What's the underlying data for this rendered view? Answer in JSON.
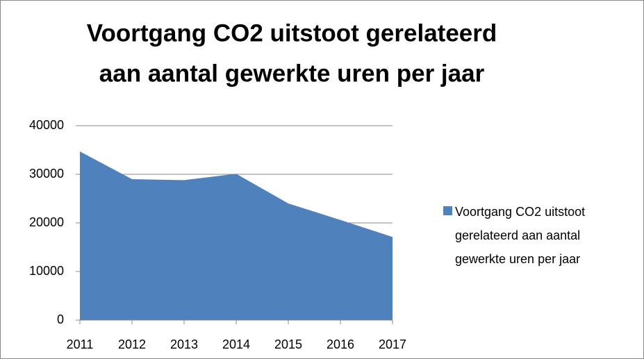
{
  "chart_data": {
    "type": "area",
    "title": [
      "Voortgang CO2 uitstoot gerelateerd",
      "aan aantal gewerkte uren per jaar"
    ],
    "x": [
      2011,
      2012,
      2013,
      2014,
      2015,
      2016,
      2017
    ],
    "xlim": [
      2011,
      2017
    ],
    "xticks": [
      2011,
      2012,
      2013,
      2014,
      2015,
      2016,
      2017
    ],
    "series": [
      {
        "name": "Voortgang CO2 uitstoot gerelateerd aan aantal gewerkte uren per jaar",
        "color": "#4f81bd",
        "values": [
          34700,
          29000,
          28800,
          30100,
          24000,
          20600,
          17100
        ]
      }
    ],
    "ylim": [
      0,
      40000
    ],
    "yticks": [
      0,
      10000,
      20000,
      30000,
      40000
    ],
    "grid": true,
    "legend": "right"
  }
}
